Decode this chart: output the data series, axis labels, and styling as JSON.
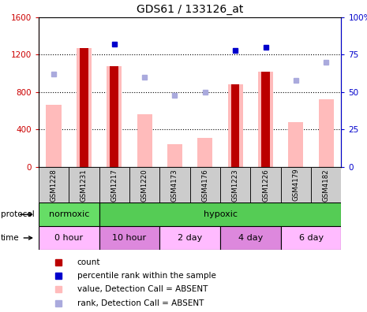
{
  "title": "GDS61 / 133126_at",
  "samples": [
    "GSM1228",
    "GSM1231",
    "GSM1217",
    "GSM1220",
    "GSM4173",
    "GSM4176",
    "GSM1223",
    "GSM1226",
    "GSM4179",
    "GSM4182"
  ],
  "count_values": [
    null,
    1270,
    1080,
    null,
    null,
    null,
    880,
    1020,
    null,
    null
  ],
  "pink_bar_values": [
    660,
    1270,
    1080,
    560,
    240,
    310,
    880,
    1020,
    480,
    720
  ],
  "light_blue_square_values": [
    62,
    null,
    null,
    60,
    48,
    50,
    null,
    null,
    58,
    70
  ],
  "dark_blue_square_values": [
    null,
    null,
    82,
    null,
    null,
    null,
    78,
    80,
    null,
    null
  ],
  "ylim_left": [
    0,
    1600
  ],
  "ylim_right": [
    0,
    100
  ],
  "yticks_left": [
    0,
    400,
    800,
    1200,
    1600
  ],
  "yticks_right": [
    0,
    25,
    50,
    75,
    100
  ],
  "ytick_right_labels": [
    "0",
    "25",
    "50",
    "75",
    "100%"
  ],
  "protocol_groups": [
    {
      "label": "normoxic",
      "start": 0,
      "end": 2,
      "color": "#66dd66"
    },
    {
      "label": "hypoxic",
      "start": 2,
      "end": 10,
      "color": "#55cc55"
    }
  ],
  "time_groups": [
    {
      "label": "0 hour",
      "start": 0,
      "end": 2,
      "color": "#ffbbff"
    },
    {
      "label": "10 hour",
      "start": 2,
      "end": 4,
      "color": "#dd88dd"
    },
    {
      "label": "2 day",
      "start": 4,
      "end": 6,
      "color": "#ffbbff"
    },
    {
      "label": "4 day",
      "start": 6,
      "end": 8,
      "color": "#dd88dd"
    },
    {
      "label": "6 day",
      "start": 8,
      "end": 10,
      "color": "#ffbbff"
    }
  ],
  "bar_color_dark_red": "#bb0000",
  "bar_color_pink": "#ffbbbb",
  "dot_color_dark_blue": "#0000cc",
  "dot_color_light_blue": "#aaaadd",
  "left_axis_color": "#cc0000",
  "right_axis_color": "#0000cc",
  "sample_bg_color": "#cccccc",
  "legend_items": [
    {
      "color": "#bb0000",
      "label": "count"
    },
    {
      "color": "#0000cc",
      "label": "percentile rank within the sample"
    },
    {
      "color": "#ffbbbb",
      "label": "value, Detection Call = ABSENT"
    },
    {
      "color": "#aaaadd",
      "label": "rank, Detection Call = ABSENT"
    }
  ]
}
